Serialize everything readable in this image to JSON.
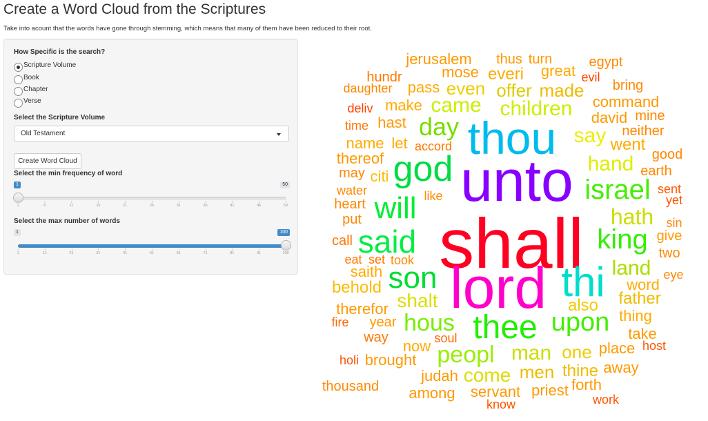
{
  "page": {
    "title": "Create a Word Cloud from the Scriptures",
    "subtitle": "Take into acount that the words have gone through stemming, which means that many of them have been reduced to their root."
  },
  "search": {
    "label": "How Specific is the search?",
    "options": [
      "Scripture Volume",
      "Book",
      "Chapter",
      "Verse"
    ],
    "selected": "Scripture Volume"
  },
  "volume": {
    "label": "Select the Scripture Volume",
    "value": "Old Testament"
  },
  "button": {
    "label": "Create Word Cloud"
  },
  "min_freq": {
    "label": "Select the min frequency of word",
    "min": 1,
    "max": 50,
    "value": 1,
    "min_text": "1",
    "max_text": "50",
    "value_text": "1",
    "ticks": [
      "1",
      "6",
      "11",
      "16",
      "21",
      "26",
      "31",
      "36",
      "41",
      "46",
      "50"
    ]
  },
  "max_words": {
    "label": "Select the max number of words",
    "min": 1,
    "max": 100,
    "value": 100,
    "min_text": "1",
    "max_text": "100",
    "value_text": "100",
    "ticks": [
      "1",
      "11",
      "21",
      "31",
      "41",
      "51",
      "61",
      "71",
      "81",
      "91",
      "100"
    ]
  },
  "cloud": {
    "words": [
      {
        "t": "shall",
        "c": "#ff0022"
      },
      {
        "t": "unto",
        "c": "#8800ff"
      },
      {
        "t": "lord",
        "c": "#ff00cc"
      },
      {
        "t": "thou",
        "c": "#00bbee"
      },
      {
        "t": "god",
        "c": "#00dd44"
      },
      {
        "t": "thi",
        "c": "#00ddcc"
      },
      {
        "t": "said",
        "c": "#00ee44"
      },
      {
        "t": "thee",
        "c": "#22ee00"
      },
      {
        "t": "will",
        "c": "#00ee33"
      },
      {
        "t": "son",
        "c": "#00dd33"
      },
      {
        "t": "israel",
        "c": "#44ee00"
      },
      {
        "t": "king",
        "c": "#33ee00"
      },
      {
        "t": "upon",
        "c": "#44ee00"
      },
      {
        "t": "hous",
        "c": "#77ee00"
      },
      {
        "t": "day",
        "c": "#77dd00"
      },
      {
        "t": "peopl",
        "c": "#99ee00"
      },
      {
        "t": "man",
        "c": "#ccdd00"
      },
      {
        "t": "came",
        "c": "#ccee00"
      },
      {
        "t": "children",
        "c": "#ccee00"
      },
      {
        "t": "hath",
        "c": "#ccdd00"
      },
      {
        "t": "hand",
        "c": "#ddee00"
      },
      {
        "t": "say",
        "c": "#eeee00"
      },
      {
        "t": "land",
        "c": "#aadd00"
      },
      {
        "t": "shalt",
        "c": "#dddd00"
      },
      {
        "t": "come",
        "c": "#dddd00"
      },
      {
        "t": "one",
        "c": "#eecc00"
      },
      {
        "t": "also",
        "c": "#eecc00"
      },
      {
        "t": "father",
        "c": "#eebb00"
      },
      {
        "t": "men",
        "c": "#eebb00"
      },
      {
        "t": "thine",
        "c": "#eebb00"
      },
      {
        "t": "even",
        "c": "#eecc00"
      },
      {
        "t": "offer",
        "c": "#ddcc00"
      },
      {
        "t": "made",
        "c": "#eebb00"
      },
      {
        "t": "behold",
        "c": "#ffbb00"
      },
      {
        "t": "saith",
        "c": "#ffaa00"
      },
      {
        "t": "word",
        "c": "#ffaa00"
      },
      {
        "t": "thing",
        "c": "#ffaa00"
      },
      {
        "t": "went",
        "c": "#ffaa00"
      },
      {
        "t": "make",
        "c": "#ffaa00"
      },
      {
        "t": "pass",
        "c": "#ffaa00"
      },
      {
        "t": "everi",
        "c": "#ffaa00"
      },
      {
        "t": "great",
        "c": "#ffaa00"
      },
      {
        "t": "citi",
        "c": "#ffbb00"
      },
      {
        "t": "judah",
        "c": "#ff9900"
      },
      {
        "t": "servant",
        "c": "#ff9900"
      },
      {
        "t": "priest",
        "c": "#ff9900"
      },
      {
        "t": "forth",
        "c": "#ff9900"
      },
      {
        "t": "away",
        "c": "#ff9900"
      },
      {
        "t": "place",
        "c": "#ff9900"
      },
      {
        "t": "take",
        "c": "#ff9900"
      },
      {
        "t": "david",
        "c": "#ff9900"
      },
      {
        "t": "command",
        "c": "#ff9900"
      },
      {
        "t": "name",
        "c": "#ffaa00"
      },
      {
        "t": "let",
        "c": "#ffaa00"
      },
      {
        "t": "now",
        "c": "#ffaa00"
      },
      {
        "t": "year",
        "c": "#ff9900"
      },
      {
        "t": "brought",
        "c": "#ff9900"
      },
      {
        "t": "among",
        "c": "#ff9900"
      },
      {
        "t": "hast",
        "c": "#ff9900"
      },
      {
        "t": "therefor",
        "c": "#ff9900"
      },
      {
        "t": "thereof",
        "c": "#ff9900"
      },
      {
        "t": "mose",
        "c": "#ff9900"
      },
      {
        "t": "jerusalem",
        "c": "#ff9900"
      },
      {
        "t": "thus",
        "c": "#ff9900"
      },
      {
        "t": "turn",
        "c": "#ff9900"
      },
      {
        "t": "egypt",
        "c": "#ff8800"
      },
      {
        "t": "bring",
        "c": "#ff8800"
      },
      {
        "t": "mine",
        "c": "#ff8800"
      },
      {
        "t": "neither",
        "c": "#ff8800"
      },
      {
        "t": "earth",
        "c": "#ff8800"
      },
      {
        "t": "good",
        "c": "#ff8800"
      },
      {
        "t": "give",
        "c": "#ff9900"
      },
      {
        "t": "two",
        "c": "#ff8800"
      },
      {
        "t": "sin",
        "c": "#ff8800"
      },
      {
        "t": "eye",
        "c": "#ff8800"
      },
      {
        "t": "thousand",
        "c": "#ff8800"
      },
      {
        "t": "daughter",
        "c": "#ff8800"
      },
      {
        "t": "hundr",
        "c": "#ff7700"
      },
      {
        "t": "time",
        "c": "#ff7700"
      },
      {
        "t": "accord",
        "c": "#ff7700"
      },
      {
        "t": "may",
        "c": "#ff8800"
      },
      {
        "t": "water",
        "c": "#ff8800"
      },
      {
        "t": "heart",
        "c": "#ff8800"
      },
      {
        "t": "put",
        "c": "#ff8800"
      },
      {
        "t": "call",
        "c": "#ff7700"
      },
      {
        "t": "eat",
        "c": "#ff7700"
      },
      {
        "t": "set",
        "c": "#ff7700"
      },
      {
        "t": "took",
        "c": "#ff8800"
      },
      {
        "t": "like",
        "c": "#ff8800"
      },
      {
        "t": "way",
        "c": "#ff7700"
      },
      {
        "t": "fire",
        "c": "#ff6600"
      },
      {
        "t": "holi",
        "c": "#ff5500"
      },
      {
        "t": "soul",
        "c": "#ff6600"
      },
      {
        "t": "know",
        "c": "#ff5500"
      },
      {
        "t": "work",
        "c": "#ff5500"
      },
      {
        "t": "host",
        "c": "#ff5500"
      },
      {
        "t": "sent",
        "c": "#ff5500"
      },
      {
        "t": "yet",
        "c": "#ff5500"
      },
      {
        "t": "evil",
        "c": "#ff4400"
      },
      {
        "t": "deliv",
        "c": "#ff4400"
      }
    ]
  }
}
